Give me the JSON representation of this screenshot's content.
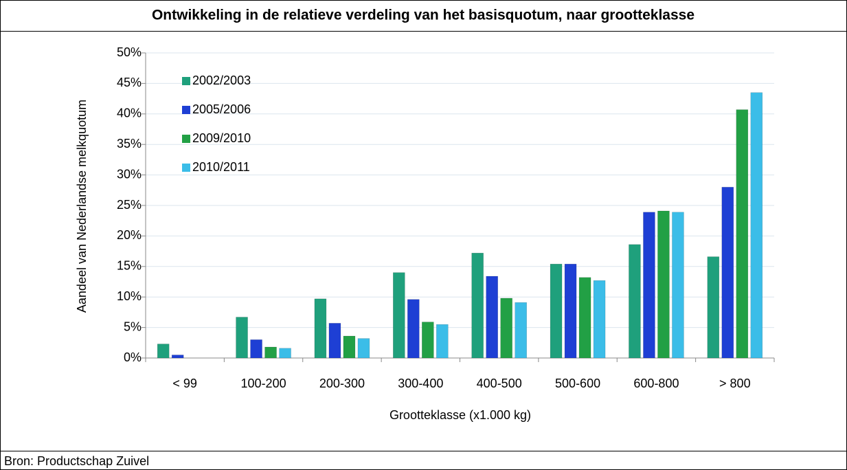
{
  "chart_data": {
    "type": "bar",
    "title": "Ontwikkeling in de relatieve verdeling van het basisquotum, naar grootteklasse",
    "y_label": "Aandeel van Nederlandse melkquotum",
    "x_label": "Grootteklasse (x1.000 kg)",
    "source": "Bron: Productschap Zuivel",
    "categories": [
      "< 99",
      "100-200",
      "200-300",
      "300-400",
      "400-500",
      "500-600",
      "600-800",
      "> 800"
    ],
    "series": [
      {
        "name": "2002/2003",
        "color": "#1fa07c",
        "values": [
          2.3,
          6.7,
          9.7,
          14.0,
          17.2,
          15.4,
          18.6,
          16.6
        ]
      },
      {
        "name": "2005/2006",
        "color": "#1e3fd4",
        "values": [
          0.5,
          3.0,
          5.7,
          9.6,
          13.4,
          15.4,
          23.9,
          28.0
        ]
      },
      {
        "name": "2009/2010",
        "color": "#22a045",
        "values": [
          0,
          1.8,
          3.6,
          5.9,
          9.8,
          13.2,
          24.1,
          40.7
        ]
      },
      {
        "name": "2010/2011",
        "color": "#3bbde8",
        "values": [
          0,
          1.6,
          3.2,
          5.5,
          9.1,
          12.7,
          23.9,
          43.5
        ]
      }
    ],
    "ylim": [
      0,
      50
    ],
    "yticks": [
      {
        "value": 0,
        "label": "0%"
      },
      {
        "value": 5,
        "label": "5%"
      },
      {
        "value": 10,
        "label": "10%"
      },
      {
        "value": 15,
        "label": "15%"
      },
      {
        "value": 20,
        "label": "20%"
      },
      {
        "value": 25,
        "label": "25%"
      },
      {
        "value": 30,
        "label": "30%"
      },
      {
        "value": 35,
        "label": "35%"
      },
      {
        "value": 40,
        "label": "40%"
      },
      {
        "value": 45,
        "label": "45%"
      },
      {
        "value": 50,
        "label": "50%"
      }
    ],
    "grid": true,
    "legend": "top-left"
  }
}
